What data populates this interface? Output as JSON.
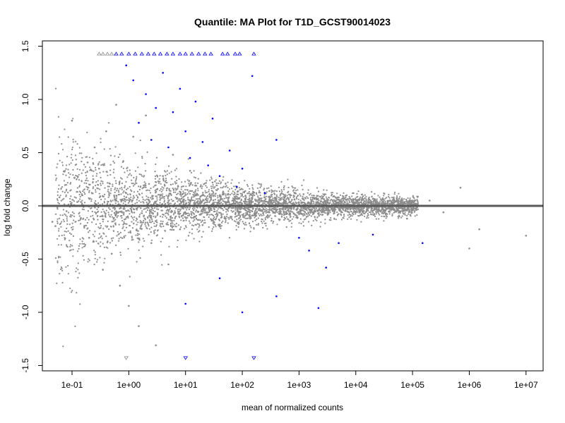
{
  "chart_data": {
    "type": "scatter",
    "title": "Quantile: MA Plot for T1D_GCST90014023",
    "xlabel": "mean of normalized counts",
    "ylabel": "log fold change",
    "x_scale": "log10",
    "xlim": [
      0.03,
      20000000
    ],
    "ylim": [
      -1.55,
      1.55
    ],
    "x_ticks": [
      {
        "value": 0.1,
        "label": "1e-01"
      },
      {
        "value": 1,
        "label": "1e+00"
      },
      {
        "value": 10,
        "label": "1e+01"
      },
      {
        "value": 100,
        "label": "1e+02"
      },
      {
        "value": 1000,
        "label": "1e+03"
      },
      {
        "value": 10000,
        "label": "1e+04"
      },
      {
        "value": 100000,
        "label": "1e+05"
      },
      {
        "value": 1000000,
        "label": "1e+06"
      },
      {
        "value": 10000000,
        "label": "1e+07"
      }
    ],
    "y_ticks": [
      {
        "value": -1.5,
        "label": "-1.5"
      },
      {
        "value": -1.0,
        "label": "-1.0"
      },
      {
        "value": -0.5,
        "label": "-0.5"
      },
      {
        "value": 0.0,
        "label": "0.0"
      },
      {
        "value": 0.5,
        "label": "0.5"
      },
      {
        "value": 1.0,
        "label": "1.0"
      },
      {
        "value": 1.5,
        "label": "1.5"
      }
    ],
    "reference_line": {
      "y": 0,
      "color": "#595959"
    },
    "grid": false,
    "colors": {
      "nonsignificant": "#8c8c8c",
      "significant": "#0000ff"
    },
    "series": [
      {
        "color": "#8c8c8c",
        "points": [
          [
            0.045,
            -0.15
          ],
          [
            0.06,
            0.08
          ],
          [
            0.08,
            -0.05
          ],
          [
            0.1,
            0.8
          ],
          [
            0.12,
            0.25
          ],
          [
            0.15,
            0.1
          ],
          [
            0.2,
            -0.3
          ],
          [
            0.25,
            0.55
          ],
          [
            0.3,
            0.35
          ],
          [
            0.35,
            -0.6
          ],
          [
            0.4,
            0.7
          ],
          [
            0.5,
            -0.45
          ],
          [
            0.6,
            0.95
          ],
          [
            0.7,
            -0.75
          ],
          [
            0.8,
            0.42
          ],
          [
            0.9,
            0.12
          ],
          [
            1.0,
            -0.94
          ],
          [
            1.2,
            0.65
          ],
          [
            1.5,
            -1.13
          ],
          [
            2.0,
            0.85
          ],
          [
            2.5,
            -0.35
          ],
          [
            3.0,
            -1.31
          ],
          [
            4.0,
            0.28
          ],
          [
            5.0,
            -0.55
          ],
          [
            6.0,
            0.48
          ],
          [
            8.0,
            -0.22
          ],
          [
            12.0,
            0.33
          ],
          [
            20.0,
            -0.18
          ],
          [
            30.0,
            0.22
          ],
          [
            50.0,
            -0.12
          ],
          [
            80.0,
            0.17
          ],
          [
            150.0,
            -0.09
          ],
          [
            300.0,
            0.14
          ],
          [
            600.0,
            -0.07
          ],
          [
            1200.0,
            0.11
          ],
          [
            2500.0,
            -0.06
          ],
          [
            5000.0,
            0.08
          ],
          [
            12000.0,
            -0.05
          ],
          [
            30000.0,
            0.07
          ],
          [
            80000.0,
            -0.12
          ],
          [
            200000.0,
            0.05
          ],
          [
            350000.0,
            -0.06
          ],
          [
            700000.0,
            0.17
          ],
          [
            1000000.0,
            -0.4
          ],
          [
            1500000.0,
            -0.22
          ],
          [
            10000000.0,
            -0.28
          ]
        ]
      },
      {
        "color": "#0000ff",
        "points": [
          [
            0.9,
            1.32
          ],
          [
            1.2,
            1.18
          ],
          [
            1.5,
            0.78
          ],
          [
            2.0,
            1.05
          ],
          [
            2.5,
            0.62
          ],
          [
            3.0,
            0.92
          ],
          [
            4.0,
            1.25
          ],
          [
            5.0,
            0.55
          ],
          [
            6.0,
            0.88
          ],
          [
            8.0,
            1.1
          ],
          [
            10.0,
            0.7
          ],
          [
            12.0,
            0.45
          ],
          [
            15.0,
            0.98
          ],
          [
            20.0,
            0.6
          ],
          [
            25.0,
            0.38
          ],
          [
            30.0,
            0.82
          ],
          [
            40.0,
            0.28
          ],
          [
            60.0,
            0.52
          ],
          [
            80.0,
            0.18
          ],
          [
            100.0,
            0.35
          ],
          [
            150.0,
            1.22
          ],
          [
            250.0,
            0.12
          ],
          [
            400.0,
            0.62
          ],
          [
            1000.0,
            -0.3
          ],
          [
            1500.0,
            -0.42
          ],
          [
            2200.0,
            -0.96
          ],
          [
            3000.0,
            -0.58
          ],
          [
            5000.0,
            -0.35
          ],
          [
            10.0,
            -0.92
          ],
          [
            40.0,
            -0.68
          ],
          [
            100.0,
            -1.0
          ],
          [
            400.0,
            -0.85
          ],
          [
            20000.0,
            -0.27
          ],
          [
            150000.0,
            -0.35
          ]
        ]
      }
    ],
    "clipped_markers": [
      {
        "x": 0.3,
        "y": 1.43,
        "color": "#8c8c8c"
      },
      {
        "x": 0.35,
        "y": 1.43,
        "color": "#8c8c8c"
      },
      {
        "x": 0.42,
        "y": 1.43,
        "color": "#8c8c8c"
      },
      {
        "x": 0.5,
        "y": 1.43,
        "color": "#8c8c8c"
      },
      {
        "x": 0.6,
        "y": 1.43,
        "color": "#0000ff"
      },
      {
        "x": 0.75,
        "y": 1.43,
        "color": "#0000ff"
      },
      {
        "x": 1.0,
        "y": 1.43,
        "color": "#0000ff"
      },
      {
        "x": 1.3,
        "y": 1.43,
        "color": "#0000ff"
      },
      {
        "x": 1.7,
        "y": 1.43,
        "color": "#0000ff"
      },
      {
        "x": 2.2,
        "y": 1.43,
        "color": "#0000ff"
      },
      {
        "x": 2.8,
        "y": 1.43,
        "color": "#0000ff"
      },
      {
        "x": 3.6,
        "y": 1.43,
        "color": "#0000ff"
      },
      {
        "x": 4.7,
        "y": 1.43,
        "color": "#0000ff"
      },
      {
        "x": 6.0,
        "y": 1.43,
        "color": "#0000ff"
      },
      {
        "x": 8.0,
        "y": 1.43,
        "color": "#0000ff"
      },
      {
        "x": 10.0,
        "y": 1.43,
        "color": "#0000ff"
      },
      {
        "x": 13.0,
        "y": 1.43,
        "color": "#0000ff"
      },
      {
        "x": 17.0,
        "y": 1.43,
        "color": "#0000ff"
      },
      {
        "x": 22.0,
        "y": 1.43,
        "color": "#0000ff"
      },
      {
        "x": 28.0,
        "y": 1.43,
        "color": "#0000ff"
      },
      {
        "x": 45.0,
        "y": 1.43,
        "color": "#0000ff"
      },
      {
        "x": 55.0,
        "y": 1.43,
        "color": "#0000ff"
      },
      {
        "x": 75.0,
        "y": 1.43,
        "color": "#0000ff"
      },
      {
        "x": 90.0,
        "y": 1.43,
        "color": "#0000ff"
      },
      {
        "x": 160.0,
        "y": 1.43,
        "color": "#0000ff"
      },
      {
        "x": 0.9,
        "y": -1.43,
        "color": "#8c8c8c"
      },
      {
        "x": 10.0,
        "y": -1.43,
        "color": "#0000ff"
      },
      {
        "x": 160.0,
        "y": -1.43,
        "color": "#0000ff"
      }
    ]
  }
}
